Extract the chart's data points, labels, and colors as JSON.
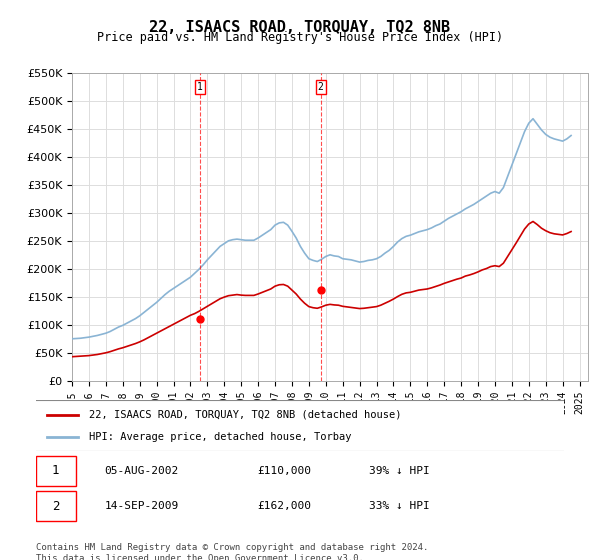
{
  "title": "22, ISAACS ROAD, TORQUAY, TQ2 8NB",
  "subtitle": "Price paid vs. HM Land Registry's House Price Index (HPI)",
  "ylabel": "",
  "background_color": "#ffffff",
  "grid_color": "#dddddd",
  "hpi_color": "#8ab4d4",
  "price_color": "#cc0000",
  "ylim": [
    0,
    550000
  ],
  "yticks": [
    0,
    50000,
    100000,
    150000,
    200000,
    250000,
    300000,
    350000,
    400000,
    450000,
    500000,
    550000
  ],
  "ytick_labels": [
    "£0",
    "£50K",
    "£100K",
    "£150K",
    "£200K",
    "£250K",
    "£300K",
    "£350K",
    "£400K",
    "£450K",
    "£500K",
    "£550K"
  ],
  "xlim_start": 1995.0,
  "xlim_end": 2025.5,
  "transactions": [
    {
      "label": "1",
      "date": 2002.58,
      "price": 110000,
      "display_date": "05-AUG-2002",
      "display_price": "£110,000",
      "display_pct": "39% ↓ HPI"
    },
    {
      "label": "2",
      "date": 2009.7,
      "price": 162000,
      "display_date": "14-SEP-2009",
      "display_price": "£162,000",
      "display_pct": "33% ↓ HPI"
    }
  ],
  "legend_line1": "22, ISAACS ROAD, TORQUAY, TQ2 8NB (detached house)",
  "legend_line2": "HPI: Average price, detached house, Torbay",
  "footnote": "Contains HM Land Registry data © Crown copyright and database right 2024.\nThis data is licensed under the Open Government Licence v3.0.",
  "hpi_data_x": [
    1995.0,
    1995.25,
    1995.5,
    1995.75,
    1996.0,
    1996.25,
    1996.5,
    1996.75,
    1997.0,
    1997.25,
    1997.5,
    1997.75,
    1998.0,
    1998.25,
    1998.5,
    1998.75,
    1999.0,
    1999.25,
    1999.5,
    1999.75,
    2000.0,
    2000.25,
    2000.5,
    2000.75,
    2001.0,
    2001.25,
    2001.5,
    2001.75,
    2002.0,
    2002.25,
    2002.5,
    2002.75,
    2003.0,
    2003.25,
    2003.5,
    2003.75,
    2004.0,
    2004.25,
    2004.5,
    2004.75,
    2005.0,
    2005.25,
    2005.5,
    2005.75,
    2006.0,
    2006.25,
    2006.5,
    2006.75,
    2007.0,
    2007.25,
    2007.5,
    2007.75,
    2008.0,
    2008.25,
    2008.5,
    2008.75,
    2009.0,
    2009.25,
    2009.5,
    2009.75,
    2010.0,
    2010.25,
    2010.5,
    2010.75,
    2011.0,
    2011.25,
    2011.5,
    2011.75,
    2012.0,
    2012.25,
    2012.5,
    2012.75,
    2013.0,
    2013.25,
    2013.5,
    2013.75,
    2014.0,
    2014.25,
    2014.5,
    2014.75,
    2015.0,
    2015.25,
    2015.5,
    2015.75,
    2016.0,
    2016.25,
    2016.5,
    2016.75,
    2017.0,
    2017.25,
    2017.5,
    2017.75,
    2018.0,
    2018.25,
    2018.5,
    2018.75,
    2019.0,
    2019.25,
    2019.5,
    2019.75,
    2020.0,
    2020.25,
    2020.5,
    2020.75,
    2021.0,
    2021.25,
    2021.5,
    2021.75,
    2022.0,
    2022.25,
    2022.5,
    2022.75,
    2023.0,
    2023.25,
    2023.5,
    2023.75,
    2024.0,
    2024.25,
    2024.5
  ],
  "hpi_data_y": [
    75000,
    75500,
    76000,
    77000,
    78000,
    79500,
    81000,
    83000,
    85000,
    88000,
    92000,
    96000,
    99000,
    103000,
    107000,
    111000,
    116000,
    122000,
    128000,
    134000,
    140000,
    147000,
    154000,
    160000,
    165000,
    170000,
    175000,
    180000,
    185000,
    192000,
    199000,
    207000,
    216000,
    224000,
    232000,
    240000,
    245000,
    250000,
    252000,
    253000,
    252000,
    251000,
    251000,
    251000,
    255000,
    260000,
    265000,
    270000,
    278000,
    282000,
    283000,
    278000,
    267000,
    255000,
    240000,
    228000,
    218000,
    215000,
    213000,
    217000,
    222000,
    225000,
    223000,
    222000,
    218000,
    217000,
    216000,
    214000,
    212000,
    213000,
    215000,
    216000,
    218000,
    222000,
    228000,
    233000,
    240000,
    248000,
    254000,
    258000,
    260000,
    263000,
    266000,
    268000,
    270000,
    273000,
    277000,
    280000,
    285000,
    290000,
    294000,
    298000,
    302000,
    307000,
    311000,
    315000,
    320000,
    325000,
    330000,
    335000,
    338000,
    335000,
    345000,
    365000,
    385000,
    405000,
    425000,
    445000,
    460000,
    468000,
    458000,
    448000,
    440000,
    435000,
    432000,
    430000,
    428000,
    432000,
    438000
  ],
  "price_data_x": [
    1995.0,
    1995.25,
    1995.5,
    1995.75,
    1996.0,
    1996.25,
    1996.5,
    1996.75,
    1997.0,
    1997.25,
    1997.5,
    1997.75,
    1998.0,
    1998.25,
    1998.5,
    1998.75,
    1999.0,
    1999.25,
    1999.5,
    1999.75,
    2000.0,
    2000.25,
    2000.5,
    2000.75,
    2001.0,
    2001.25,
    2001.5,
    2001.75,
    2002.0,
    2002.25,
    2002.5,
    2002.75,
    2003.0,
    2003.25,
    2003.5,
    2003.75,
    2004.0,
    2004.25,
    2004.5,
    2004.75,
    2005.0,
    2005.25,
    2005.5,
    2005.75,
    2006.0,
    2006.25,
    2006.5,
    2006.75,
    2007.0,
    2007.25,
    2007.5,
    2007.75,
    2008.0,
    2008.25,
    2008.5,
    2008.75,
    2009.0,
    2009.25,
    2009.5,
    2009.75,
    2010.0,
    2010.25,
    2010.5,
    2010.75,
    2011.0,
    2011.25,
    2011.5,
    2011.75,
    2012.0,
    2012.25,
    2012.5,
    2012.75,
    2013.0,
    2013.25,
    2013.5,
    2013.75,
    2014.0,
    2014.25,
    2014.5,
    2014.75,
    2015.0,
    2015.25,
    2015.5,
    2015.75,
    2016.0,
    2016.25,
    2016.5,
    2016.75,
    2017.0,
    2017.25,
    2017.5,
    2017.75,
    2018.0,
    2018.25,
    2018.5,
    2018.75,
    2019.0,
    2019.25,
    2019.5,
    2019.75,
    2020.0,
    2020.25,
    2020.5,
    2020.75,
    2021.0,
    2021.25,
    2021.5,
    2021.75,
    2022.0,
    2022.25,
    2022.5,
    2022.75,
    2023.0,
    2023.25,
    2023.5,
    2023.75,
    2024.0,
    2024.25,
    2024.5
  ],
  "price_data_y": [
    43000,
    43500,
    44000,
    44500,
    45000,
    46000,
    47000,
    48500,
    50000,
    52000,
    54500,
    57000,
    59000,
    61500,
    64000,
    66500,
    69500,
    73000,
    77000,
    81000,
    85000,
    89000,
    93000,
    97000,
    101000,
    105000,
    109000,
    113000,
    117000,
    120000,
    124000,
    128500,
    133000,
    137500,
    142000,
    146500,
    149500,
    152000,
    153000,
    154000,
    153000,
    152500,
    152500,
    152500,
    155000,
    158000,
    161000,
    164000,
    169000,
    171500,
    172000,
    169000,
    162000,
    155000,
    146000,
    138500,
    132500,
    130500,
    129500,
    132000,
    135000,
    136500,
    135500,
    135000,
    133000,
    132000,
    131000,
    130000,
    129000,
    129500,
    130500,
    131500,
    132500,
    135000,
    138500,
    142000,
    146000,
    150500,
    154500,
    157000,
    158000,
    160000,
    162000,
    163000,
    164000,
    166000,
    168500,
    171000,
    174000,
    176500,
    179000,
    181500,
    183500,
    187000,
    189000,
    191500,
    194500,
    198000,
    200500,
    204000,
    205500,
    204000,
    210000,
    222000,
    234000,
    246000,
    258500,
    271000,
    280000,
    284500,
    279000,
    272500,
    268000,
    264500,
    262500,
    261500,
    260500,
    263000,
    266500
  ]
}
